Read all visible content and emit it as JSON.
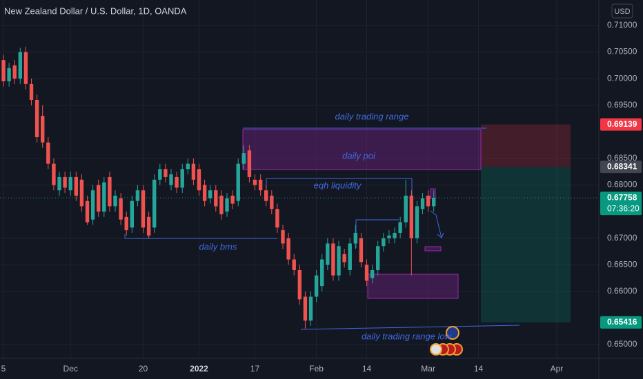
{
  "chart_data": {
    "type": "candlestick",
    "title": "New Zealand Dollar / U.S. Dollar, 1D, OANDA",
    "currency": "USD",
    "up_color": "#26a69a",
    "down_color": "#ef5350",
    "grid": true,
    "open": [
      0.7035,
      0.6995,
      0.7025,
      0.7,
      0.705,
      0.699,
      0.696,
      0.693,
      0.688,
      0.684,
      0.679,
      0.6815,
      0.679,
      0.6815,
      0.681,
      0.677,
      0.6735,
      0.68,
      0.675,
      0.6815,
      0.676,
      0.6775,
      0.674,
      0.672,
      0.677,
      0.679,
      0.674,
      0.672,
      0.681,
      0.683,
      0.68,
      0.6815,
      0.6795,
      0.683,
      0.684,
      0.683,
      0.68,
      0.6775,
      0.679,
      0.678,
      0.675,
      0.678,
      0.677,
      0.684,
      0.6865,
      0.681,
      0.681,
      0.679,
      0.678,
      0.6755,
      0.6715,
      0.67,
      0.666,
      0.664,
      0.659,
      0.6545,
      0.659,
      0.661,
      0.665,
      0.669,
      0.663,
      0.667,
      0.664,
      0.669,
      0.67,
      0.665,
      0.6625,
      0.664,
      0.6685,
      0.67,
      0.67,
      0.671,
      0.673,
      0.678,
      0.67,
      0.6755,
      0.678,
      0.676
    ],
    "high": [
      0.7045,
      0.703,
      0.7035,
      0.7058,
      0.706,
      0.7,
      0.697,
      0.695,
      0.689,
      0.685,
      0.6825,
      0.6825,
      0.6825,
      0.6825,
      0.682,
      0.678,
      0.68,
      0.681,
      0.6815,
      0.6825,
      0.679,
      0.6785,
      0.675,
      0.678,
      0.68,
      0.68,
      0.675,
      0.682,
      0.684,
      0.684,
      0.683,
      0.6825,
      0.684,
      0.685,
      0.685,
      0.684,
      0.681,
      0.68,
      0.68,
      0.679,
      0.6785,
      0.679,
      0.685,
      0.6875,
      0.6875,
      0.682,
      0.682,
      0.68,
      0.679,
      0.6765,
      0.6725,
      0.671,
      0.667,
      0.665,
      0.66,
      0.66,
      0.664,
      0.667,
      0.67,
      0.67,
      0.6695,
      0.668,
      0.67,
      0.6725,
      0.671,
      0.666,
      0.665,
      0.6695,
      0.671,
      0.6715,
      0.672,
      0.674,
      0.681,
      0.679,
      0.677,
      0.6785,
      0.679,
      0.679
    ],
    "low": [
      0.6985,
      0.6985,
      0.699,
      0.699,
      0.698,
      0.695,
      0.688,
      0.687,
      0.683,
      0.679,
      0.678,
      0.6785,
      0.678,
      0.677,
      0.675,
      0.6725,
      0.6725,
      0.674,
      0.674,
      0.675,
      0.675,
      0.6725,
      0.6705,
      0.671,
      0.676,
      0.671,
      0.67,
      0.671,
      0.68,
      0.6805,
      0.679,
      0.6785,
      0.6785,
      0.682,
      0.68,
      0.678,
      0.676,
      0.6765,
      0.675,
      0.6735,
      0.674,
      0.6755,
      0.676,
      0.683,
      0.6805,
      0.679,
      0.678,
      0.676,
      0.6745,
      0.671,
      0.668,
      0.665,
      0.663,
      0.6575,
      0.653,
      0.6535,
      0.658,
      0.66,
      0.664,
      0.662,
      0.662,
      0.6645,
      0.663,
      0.668,
      0.6645,
      0.661,
      0.6615,
      0.663,
      0.6675,
      0.669,
      0.669,
      0.67,
      0.672,
      0.663,
      0.669,
      0.6745,
      0.675,
      0.675
    ],
    "close": [
      0.6995,
      0.702,
      0.7,
      0.705,
      0.699,
      0.696,
      0.689,
      0.688,
      0.684,
      0.68,
      0.6815,
      0.6795,
      0.6815,
      0.678,
      0.676,
      0.673,
      0.679,
      0.675,
      0.6805,
      0.676,
      0.678,
      0.6735,
      0.6715,
      0.677,
      0.679,
      0.672,
      0.6705,
      0.681,
      0.683,
      0.6815,
      0.682,
      0.6795,
      0.683,
      0.684,
      0.681,
      0.679,
      0.677,
      0.679,
      0.676,
      0.6745,
      0.6775,
      0.6765,
      0.684,
      0.686,
      0.6815,
      0.68,
      0.679,
      0.677,
      0.6755,
      0.672,
      0.669,
      0.666,
      0.664,
      0.6585,
      0.6545,
      0.659,
      0.663,
      0.666,
      0.669,
      0.663,
      0.6685,
      0.6655,
      0.669,
      0.671,
      0.6655,
      0.662,
      0.664,
      0.6685,
      0.67,
      0.6705,
      0.671,
      0.673,
      0.678,
      0.67,
      0.676,
      0.6775,
      0.676,
      0.6776
    ],
    "xlim": [
      -0.62,
      106.54
    ],
    "xticks": [
      {
        "value": 0,
        "label": "5"
      },
      {
        "value": 12,
        "label": "Dec"
      },
      {
        "value": 25,
        "label": "20"
      },
      {
        "value": 35,
        "label": "2022"
      },
      {
        "value": 45,
        "label": "17"
      },
      {
        "value": 56,
        "label": "Feb"
      },
      {
        "value": 65,
        "label": "14"
      },
      {
        "value": 76,
        "label": "Mar"
      },
      {
        "value": 85,
        "label": "14"
      },
      {
        "value": 99,
        "label": "Apr"
      }
    ],
    "ylim": [
      0.64741,
      0.71479
    ],
    "yticks": [
      {
        "value": 0.71,
        "label": "0.71000"
      },
      {
        "value": 0.705,
        "label": "0.70500"
      },
      {
        "value": 0.7,
        "label": "0.70000"
      },
      {
        "value": 0.695,
        "label": "0.69500"
      },
      {
        "value": 0.685,
        "label": "0.68500"
      },
      {
        "value": 0.68,
        "label": "0.68000"
      },
      {
        "value": 0.67,
        "label": "0.67000"
      },
      {
        "value": 0.665,
        "label": "0.66500"
      },
      {
        "value": 0.66,
        "label": "0.66000"
      },
      {
        "value": 0.65,
        "label": "0.65000"
      }
    ],
    "price_tags": [
      {
        "value": 0.69139,
        "color": "#f23645"
      },
      {
        "value": 0.68341,
        "color": "#434651"
      },
      {
        "value": 0.67758,
        "color": "#089981",
        "countdown": "07:36:20"
      },
      {
        "value": 0.65416,
        "color": "#089981"
      }
    ],
    "annotations": [
      "daily trading range",
      "daily poi",
      "eqh liquidity",
      "daily bms",
      "daily trading range low"
    ]
  }
}
